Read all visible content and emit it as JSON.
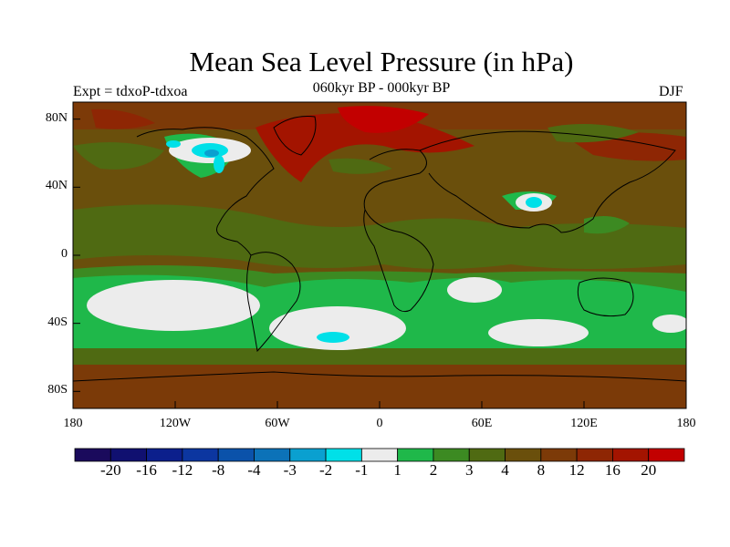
{
  "title": "Mean Sea Level Pressure (in hPa)",
  "left_label": "Expt = tdxoP-tdxoa",
  "center_label": "060kyr BP - 000kyr BP",
  "right_label": "DJF",
  "y_ticks": [
    {
      "lat": 80,
      "label": "80N"
    },
    {
      "lat": 40,
      "label": "40N"
    },
    {
      "lat": 0,
      "label": "0"
    },
    {
      "lat": -40,
      "label": "40S"
    },
    {
      "lat": -80,
      "label": "80S"
    }
  ],
  "x_ticks": [
    {
      "lon": -180,
      "label": "180"
    },
    {
      "lon": -120,
      "label": "120W"
    },
    {
      "lon": -60,
      "label": "60W"
    },
    {
      "lon": 0,
      "label": "0"
    },
    {
      "lon": 60,
      "label": "60E"
    },
    {
      "lon": 120,
      "label": "120E"
    },
    {
      "lon": 180,
      "label": "180"
    }
  ],
  "colorbar": {
    "colors": [
      "#1a0a5c",
      "#101070",
      "#0c1f8c",
      "#0c36a0",
      "#0b52aa",
      "#0c72b8",
      "#0aa0d0",
      "#00e0e8",
      "#ececec",
      "#1fb84a",
      "#3c8a22",
      "#4f6a12",
      "#6a4f0c",
      "#7c3a08",
      "#8e2604",
      "#a31400",
      "#c20000"
    ],
    "labels": [
      "-20",
      "-16",
      "-12",
      "-8",
      "-4",
      "-3",
      "-2",
      "-1",
      "1",
      "2",
      "3",
      "4",
      "8",
      "12",
      "16",
      "20"
    ]
  }
}
